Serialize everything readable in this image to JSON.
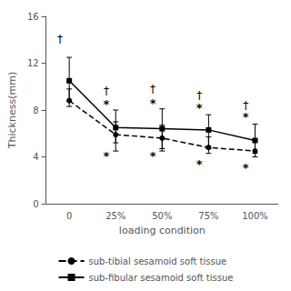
{
  "chart_data": {
    "type": "line",
    "categories": [
      "0",
      "25%",
      "50%",
      "75%",
      "100%"
    ],
    "xlabel": "loading condition",
    "ylabel": "Thickness(mm)",
    "ylim": [
      0,
      16
    ],
    "yticks": [
      0,
      4,
      8,
      12,
      16
    ],
    "grid": false,
    "legend": "bottom",
    "series": [
      {
        "name": "sub-tibial sesamoid soft tissue",
        "color": "#000000",
        "marker": "circle",
        "line_style": "dashed",
        "values": [
          8.8,
          5.9,
          5.6,
          4.8,
          4.5
        ],
        "error_lower": [
          0.5,
          0.7,
          0.9,
          0.5,
          0.5
        ],
        "error_upper": [
          1.0,
          1.1,
          1.1,
          0.9,
          0.9
        ]
      },
      {
        "name": "sub-fibular sesamoid soft tissue",
        "color": "#000000",
        "marker": "square",
        "line_style": "solid",
        "values": [
          10.5,
          6.5,
          6.4,
          6.3,
          5.4
        ],
        "error_lower": [
          1.7,
          2.0,
          1.9,
          1.6,
          1.1
        ],
        "error_upper": [
          2.0,
          1.5,
          1.7,
          1.3,
          1.4
        ]
      }
    ],
    "annotations": [
      {
        "text": "†",
        "x": "0",
        "y": 13.6,
        "color": "#000000"
      },
      {
        "text": "†",
        "x": "25%",
        "y": 9.2,
        "color": "#000000"
      },
      {
        "text": "*",
        "x": "25%",
        "y": 8.0,
        "color": "#000000"
      },
      {
        "text": "*",
        "x": "25%",
        "y": 3.6,
        "color": "#000000"
      },
      {
        "text": "†",
        "x": "50%",
        "y": 9.3,
        "color": "#000000"
      },
      {
        "text": "*",
        "x": "50%",
        "y": 8.1,
        "color": "#000000"
      },
      {
        "text": "*",
        "x": "50%",
        "y": 3.6,
        "color": "#000000"
      },
      {
        "text": "†",
        "x": "75%",
        "y": 8.8,
        "color": "#000000"
      },
      {
        "text": "*",
        "x": "75%",
        "y": 7.7,
        "color": "#000000"
      },
      {
        "text": "*",
        "x": "75%",
        "y": 2.9,
        "color": "#000000"
      },
      {
        "text": "†",
        "x": "100%",
        "y": 7.9,
        "color": "#000000"
      },
      {
        "text": "*",
        "x": "100%",
        "y": 6.9,
        "color": "#000000"
      },
      {
        "text": "*",
        "x": "100%",
        "y": 2.6,
        "color": "#000000"
      }
    ]
  }
}
